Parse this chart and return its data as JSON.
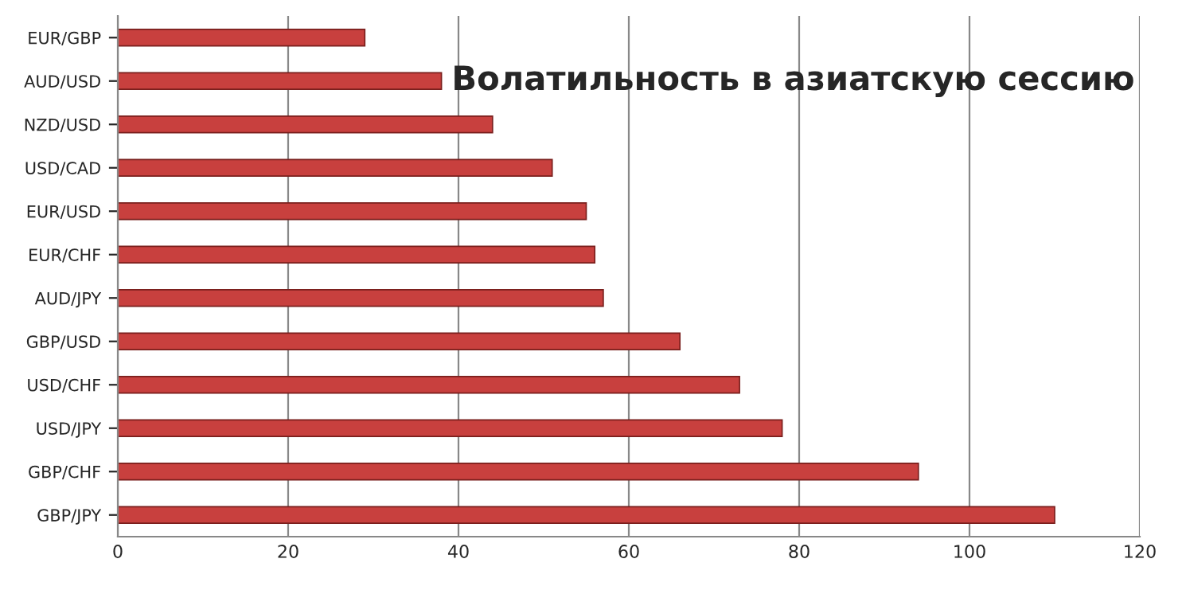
{
  "chart_data": {
    "type": "bar",
    "orientation": "horizontal",
    "title": "Волатильность в азиатскую сессию",
    "categories": [
      "EUR/GBP",
      "AUD/USD",
      "NZD/USD",
      "USD/CAD",
      "EUR/USD",
      "EUR/CHF",
      "AUD/JPY",
      "GBP/USD",
      "USD/CHF",
      "USD/JPY",
      "GBP/CHF",
      "GBP/JPY"
    ],
    "values": [
      29,
      38,
      44,
      51,
      55,
      56,
      57,
      66,
      73,
      78,
      94,
      110
    ],
    "color": "#c8403e",
    "xlim": [
      0,
      120
    ],
    "xticks": [
      0,
      20,
      40,
      60,
      80,
      100,
      120
    ],
    "grid": "x"
  }
}
